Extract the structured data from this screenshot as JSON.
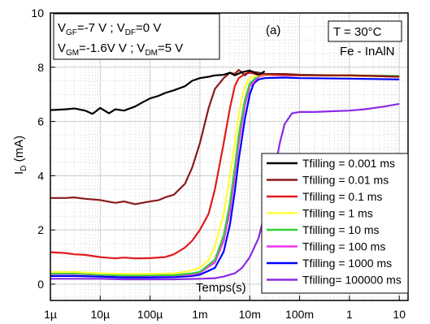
{
  "chart_data": {
    "type": "line",
    "xlabel": "Temps(s)",
    "ylabel": "I",
    "ylabel_sub": "D",
    "ylabel_unit": " (mA)",
    "xscale": "log",
    "xlim": [
      1e-06,
      15
    ],
    "ylim": [
      -0.6,
      10
    ],
    "x_ticks": [
      1e-06,
      1e-05,
      0.0001,
      0.001,
      0.01,
      0.1,
      1,
      10
    ],
    "x_tick_labels": [
      "1µ",
      "10µ",
      "100µ",
      "1m",
      "10m",
      "100m",
      "1",
      "10"
    ],
    "y_ticks": [
      0,
      2,
      4,
      6,
      8,
      10
    ],
    "y_tick_labels": [
      "0",
      "2",
      "4",
      "6",
      "8",
      "10"
    ],
    "grid": true,
    "legend_position": "bottom-right",
    "panel_label": "(a)",
    "temperature_label": "T = 30°C",
    "material_label": "Fe - InAlN",
    "conditions": {
      "line1": {
        "vgf_main": "V",
        "vgf_sub": "GF",
        "vgf_val": "=-7 V ; ",
        "vdf_main": "V",
        "vdf_sub": "DF",
        "vdf_val": "=0 V"
      },
      "line2": {
        "vgm_main": "V",
        "vgm_sub": "GM",
        "vgm_val": "=-1.6V V ; ",
        "vdm_main": "V",
        "vdm_sub": "DM",
        "vdm_val": "=5 V"
      }
    },
    "series": [
      {
        "name": "Tfilling = 0.001 ms",
        "color": "#000000",
        "x": [
          1e-06,
          2e-06,
          3e-06,
          5e-06,
          7e-06,
          1e-05,
          1.5e-05,
          2e-05,
          3e-05,
          5e-05,
          7e-05,
          0.0001,
          0.00015,
          0.0002,
          0.0003,
          0.0005,
          0.0007,
          0.001,
          0.0015,
          0.002,
          0.003,
          0.004,
          0.005,
          0.007,
          0.01,
          0.015,
          0.02
        ],
        "y": [
          6.42,
          6.45,
          6.48,
          6.4,
          6.28,
          6.5,
          6.3,
          6.45,
          6.4,
          6.55,
          6.7,
          6.85,
          6.95,
          7.05,
          7.15,
          7.3,
          7.5,
          7.6,
          7.65,
          7.7,
          7.72,
          7.8,
          7.7,
          7.82,
          7.88,
          7.72,
          7.85
        ]
      },
      {
        "name": "Tfilling = 0.01 ms",
        "color": "#8b1a1a",
        "x": [
          1e-06,
          2e-06,
          3e-06,
          5e-06,
          1e-05,
          2e-05,
          3e-05,
          5e-05,
          7e-05,
          0.0001,
          0.00015,
          0.0002,
          0.0003,
          0.0005,
          0.0007,
          0.001,
          0.0015,
          0.002,
          0.003,
          0.004,
          0.005,
          0.006,
          0.008,
          0.01,
          0.015,
          0.02,
          0.05,
          0.1,
          0.3,
          1,
          3,
          10
        ],
        "y": [
          3.18,
          3.18,
          3.2,
          3.15,
          3.1,
          3.0,
          3.05,
          2.95,
          3.0,
          3.05,
          3.1,
          3.2,
          3.3,
          3.7,
          4.3,
          5.2,
          6.5,
          7.2,
          7.6,
          7.8,
          7.75,
          7.9,
          7.7,
          7.85,
          7.8,
          7.75,
          7.75,
          7.72,
          7.7,
          7.7,
          7.68,
          7.65
        ]
      },
      {
        "name": "Tfilling = 0.1 ms",
        "color": "#e31a1c",
        "x": [
          1e-06,
          2e-06,
          3e-06,
          5e-06,
          1e-05,
          2e-05,
          3e-05,
          5e-05,
          0.0001,
          0.0002,
          0.0003,
          0.0005,
          0.0007,
          0.001,
          0.0015,
          0.002,
          0.003,
          0.004,
          0.005,
          0.006,
          0.008,
          0.01,
          0.015,
          0.02,
          0.05,
          0.1,
          0.3,
          1,
          3,
          10
        ],
        "y": [
          1.18,
          1.15,
          1.1,
          1.08,
          1.0,
          0.95,
          0.98,
          0.95,
          0.96,
          1.0,
          1.1,
          1.35,
          1.6,
          2.0,
          2.6,
          3.5,
          5.2,
          6.5,
          7.3,
          7.6,
          7.75,
          7.8,
          7.72,
          7.75,
          7.72,
          7.7,
          7.7,
          7.7,
          7.68,
          7.65
        ]
      },
      {
        "name": "Tfilling = 1 ms",
        "color": "#ffff33",
        "x": [
          1e-06,
          3e-06,
          1e-05,
          3e-05,
          0.0001,
          0.0003,
          0.0005,
          0.001,
          0.0015,
          0.002,
          0.003,
          0.004,
          0.005,
          0.006,
          0.007,
          0.008,
          0.01,
          0.015,
          0.02,
          0.05,
          0.1,
          1,
          10
        ],
        "y": [
          0.45,
          0.45,
          0.4,
          0.38,
          0.38,
          0.4,
          0.45,
          0.6,
          0.9,
          1.4,
          2.6,
          4.0,
          5.2,
          6.2,
          6.9,
          7.3,
          7.6,
          7.7,
          7.72,
          7.72,
          7.7,
          7.68,
          7.65
        ]
      },
      {
        "name": "Tfilling = 10 ms",
        "color": "#33cc33",
        "x": [
          1e-06,
          3e-06,
          1e-05,
          3e-05,
          0.0001,
          0.0003,
          0.0007,
          0.001,
          0.002,
          0.003,
          0.004,
          0.005,
          0.006,
          0.008,
          0.01,
          0.015,
          0.02,
          0.05,
          0.1,
          1,
          10
        ],
        "y": [
          0.4,
          0.4,
          0.35,
          0.32,
          0.33,
          0.33,
          0.4,
          0.45,
          0.9,
          1.8,
          3.0,
          4.3,
          5.5,
          6.8,
          7.4,
          7.7,
          7.75,
          7.75,
          7.72,
          7.7,
          7.68
        ]
      },
      {
        "name": "Tfilling = 100 ms",
        "color": "#ee33ee",
        "x": [
          1e-06,
          3e-06,
          1e-05,
          3e-05,
          0.0001,
          0.0003,
          0.0007,
          0.001,
          0.002,
          0.003,
          0.004,
          0.005,
          0.006,
          0.008,
          0.01,
          0.015,
          0.02,
          0.05,
          0.1,
          1,
          10
        ],
        "y": [
          0.38,
          0.38,
          0.35,
          0.32,
          0.32,
          0.32,
          0.35,
          0.42,
          0.8,
          1.6,
          2.7,
          4.0,
          5.2,
          6.6,
          7.3,
          7.65,
          7.7,
          7.7,
          7.7,
          7.68,
          7.66
        ]
      },
      {
        "name": "Tfilling = 1000 ms",
        "color": "#0000ff",
        "x": [
          1e-06,
          3e-06,
          1e-05,
          3e-05,
          0.0001,
          0.0003,
          0.0007,
          0.001,
          0.002,
          0.003,
          0.004,
          0.005,
          0.006,
          0.008,
          0.01,
          0.012,
          0.015,
          0.02,
          0.05,
          0.1,
          1,
          10
        ],
        "y": [
          0.3,
          0.3,
          0.28,
          0.25,
          0.25,
          0.26,
          0.3,
          0.35,
          0.6,
          1.2,
          2.2,
          3.4,
          4.6,
          6.1,
          7.0,
          7.4,
          7.55,
          7.6,
          7.62,
          7.6,
          7.58,
          7.55
        ]
      },
      {
        "name": "Tfilling= 100000 ms",
        "color": "#8a2be2",
        "x": [
          1e-06,
          3e-06,
          1e-05,
          3e-05,
          0.0001,
          0.0003,
          0.001,
          0.002,
          0.003,
          0.005,
          0.007,
          0.01,
          0.015,
          0.02,
          0.03,
          0.04,
          0.05,
          0.07,
          0.1,
          0.2,
          0.5,
          1,
          2,
          5,
          10
        ],
        "y": [
          0.2,
          0.2,
          0.2,
          0.18,
          0.18,
          0.18,
          0.2,
          0.22,
          0.28,
          0.4,
          0.6,
          1.0,
          1.7,
          2.6,
          4.0,
          5.2,
          5.9,
          6.3,
          6.35,
          6.35,
          6.38,
          6.4,
          6.45,
          6.55,
          6.65
        ]
      }
    ]
  }
}
